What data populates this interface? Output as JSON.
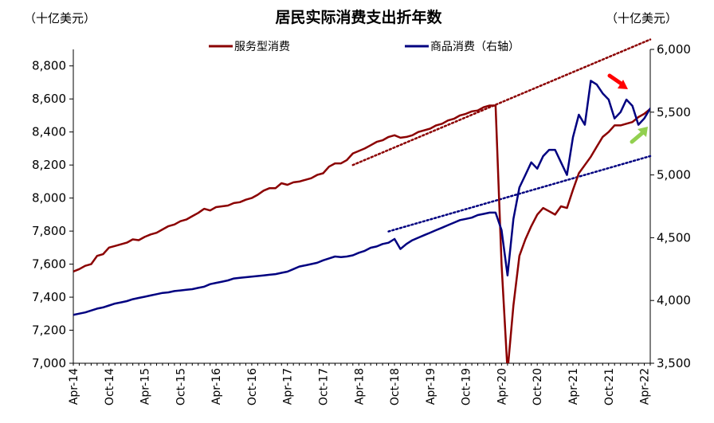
{
  "chart_data": {
    "type": "line",
    "title": "居民实际消费支出折年数",
    "left_unit": "（十亿美元）",
    "right_unit": "（十亿美元）",
    "x_tick_labels": [
      "Apr-14",
      "Oct-14",
      "Apr-15",
      "Oct-15",
      "Apr-16",
      "Oct-16",
      "Apr-17",
      "Oct-17",
      "Apr-18",
      "Oct-18",
      "Apr-19",
      "Oct-19",
      "Apr-20",
      "Oct-20",
      "Apr-21",
      "Oct-21",
      "Apr-22"
    ],
    "x_range": [
      "2014-04",
      "2022-05"
    ],
    "y_left": {
      "range": [
        7000,
        8900
      ],
      "ticks": [
        7000,
        7200,
        7400,
        7600,
        7800,
        8000,
        8200,
        8400,
        8600,
        8800
      ],
      "tick_labels": [
        "7,000",
        "7,200",
        "7,400",
        "7,600",
        "7,800",
        "8,000",
        "8,200",
        "8,400",
        "8,600",
        "8,800"
      ]
    },
    "y_right": {
      "range": [
        3500,
        6000
      ],
      "ticks": [
        3500,
        4000,
        4500,
        5000,
        5500,
        6000
      ],
      "tick_labels": [
        "3,500",
        "4,000",
        "4,500",
        "5,000",
        "5,500",
        "6,000"
      ]
    },
    "series": [
      {
        "name": "服务型消费",
        "axis": "left",
        "color": "#8B0000",
        "start": "2014-04",
        "values": [
          7555,
          7570,
          7590,
          7600,
          7650,
          7660,
          7700,
          7710,
          7720,
          7730,
          7750,
          7745,
          7765,
          7780,
          7790,
          7810,
          7830,
          7840,
          7860,
          7870,
          7890,
          7910,
          7935,
          7925,
          7945,
          7950,
          7955,
          7970,
          7975,
          7990,
          8000,
          8020,
          8045,
          8060,
          8060,
          8090,
          8080,
          8095,
          8100,
          8110,
          8120,
          8140,
          8150,
          8190,
          8210,
          8210,
          8230,
          8270,
          8285,
          8300,
          8320,
          8340,
          8350,
          8370,
          8380,
          8365,
          8370,
          8380,
          8400,
          8410,
          8420,
          8440,
          8450,
          8470,
          8480,
          8500,
          8510,
          8525,
          8530,
          8550,
          8560,
          8560,
          7600,
          6950,
          7350,
          7650,
          7750,
          7830,
          7900,
          7940,
          7920,
          7900,
          7950,
          7940,
          8050,
          8150,
          8200,
          8250,
          8310,
          8370,
          8400,
          8440,
          8440,
          8450,
          8460,
          8490,
          8510,
          8540,
          8580,
          8600
        ]
      },
      {
        "name": "商品消费（右轴）",
        "axis": "right",
        "color": "#000080",
        "start": "2014-04",
        "values": [
          3885,
          3895,
          3905,
          3920,
          3935,
          3945,
          3960,
          3975,
          3985,
          3995,
          4010,
          4020,
          4030,
          4040,
          4050,
          4060,
          4065,
          4075,
          4080,
          4085,
          4090,
          4100,
          4110,
          4130,
          4140,
          4150,
          4160,
          4175,
          4180,
          4185,
          4190,
          4195,
          4200,
          4205,
          4210,
          4220,
          4230,
          4250,
          4270,
          4280,
          4290,
          4300,
          4320,
          4335,
          4350,
          4345,
          4350,
          4360,
          4380,
          4395,
          4420,
          4430,
          4450,
          4460,
          4490,
          4410,
          4450,
          4480,
          4500,
          4520,
          4540,
          4560,
          4580,
          4600,
          4620,
          4640,
          4650,
          4660,
          4680,
          4690,
          4700,
          4700,
          4560,
          4200,
          4650,
          4900,
          5000,
          5100,
          5050,
          5150,
          5200,
          5200,
          5100,
          5000,
          5300,
          5480,
          5400,
          5750,
          5720,
          5650,
          5600,
          5450,
          5500,
          5600,
          5550,
          5400,
          5450,
          5530,
          5550,
          5450
        ]
      }
    ],
    "trend_lines": [
      {
        "series": "服务型消费",
        "axis": "left",
        "style": "dotted",
        "from": {
          "x": "2018-03",
          "y": 8200
        },
        "to": {
          "x": "2022-05",
          "y": 8960
        }
      },
      {
        "series": "商品消费（右轴）",
        "axis": "right",
        "style": "dotted",
        "from": {
          "x": "2018-09",
          "y": 4550
        },
        "to": {
          "x": "2022-05",
          "y": 5150
        }
      }
    ],
    "annotations": [
      {
        "type": "arrow",
        "color": "#FF0000",
        "direction": "down-right"
      },
      {
        "type": "arrow",
        "color": "#92D050",
        "direction": "up-right"
      }
    ],
    "legend_placement": "top-center",
    "grid": false
  }
}
